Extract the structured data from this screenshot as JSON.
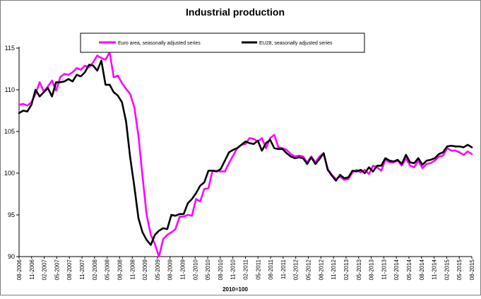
{
  "chart_data": {
    "type": "line",
    "title": "Industrial production",
    "xlabel": "2010=100",
    "ylabel": "",
    "ylim": [
      90,
      115
    ],
    "yticks": [
      90,
      95,
      100,
      105,
      110,
      115
    ],
    "grid": false,
    "legend_position": "top",
    "x_start": "08-2006",
    "x_end": "08-2015",
    "tick_labels": [
      "08-2006",
      "11-2006",
      "02-2007",
      "05-2007",
      "08-2007",
      "11-2007",
      "02-2008",
      "05-2008",
      "08-2008",
      "11-2008",
      "02-2009",
      "05-2009",
      "08-2009",
      "11-2009",
      "02-2010",
      "05-2010",
      "08-2010",
      "11-2010",
      "02-2011",
      "05-2011",
      "08-2011",
      "11-2011",
      "02-2012",
      "05-2012",
      "08-2012",
      "11-2012",
      "02-2013",
      "05-2013",
      "08-2013",
      "11-2013",
      "02-2014",
      "05-2014",
      "08-2014",
      "11-2014",
      "02-2015",
      "05-2015",
      "08-2015"
    ],
    "series": [
      {
        "name": "Euro area, seasonally adjusted series",
        "color": "#ff00ff",
        "values": [
          108.2,
          108.3,
          108.1,
          108.5,
          109.5,
          110.9,
          109.8,
          110.4,
          111.1,
          109.9,
          111.5,
          111.9,
          111.8,
          112.1,
          112.6,
          112.4,
          112.9,
          112.7,
          113.3,
          114.1,
          113.8,
          113.6,
          114.5,
          111.5,
          111.7,
          110.8,
          110.1,
          109.5,
          107.9,
          104.5,
          99.6,
          95.0,
          92.6,
          91.5,
          90.0,
          92.1,
          92.6,
          92.9,
          93.3,
          94.8,
          94.8,
          95.0,
          94.9,
          96.9,
          96.6,
          98.1,
          98.2,
          100.3,
          100.3,
          100.2,
          100.2,
          101.2,
          102.1,
          103.0,
          103.4,
          103.5,
          104.2,
          104.1,
          103.8,
          104.2,
          103.0,
          104.2,
          104.6,
          103.1,
          103.0,
          102.8,
          102.3,
          102.0,
          102.1,
          102.0,
          101.3,
          102.0,
          101.3,
          102.0,
          102.4,
          100.5,
          99.8,
          99.3,
          99.6,
          99.2,
          99.3,
          100.1,
          100.4,
          100.1,
          100.4,
          99.9,
          100.9,
          100.7,
          100.3,
          101.6,
          101.3,
          101.3,
          101.5,
          100.9,
          101.8,
          100.9,
          100.7,
          101.5,
          100.6,
          101.1,
          101.2,
          101.5,
          102.0,
          102.1,
          103.0,
          102.7,
          102.7,
          102.5,
          102.2,
          102.6,
          102.3
        ]
      },
      {
        "name": "EU28, seasonally adjusted series",
        "color": "#000000",
        "values": [
          107.2,
          107.5,
          107.4,
          108.2,
          110.0,
          109.2,
          109.7,
          110.2,
          109.2,
          110.9,
          110.9,
          111.0,
          111.3,
          111.0,
          111.8,
          111.6,
          112.1,
          113.0,
          112.9,
          112.3,
          113.5,
          110.6,
          110.6,
          109.7,
          109.3,
          108.5,
          106.2,
          101.9,
          98.4,
          94.6,
          92.9,
          92.0,
          91.4,
          92.6,
          93.1,
          93.4,
          93.3,
          95.0,
          94.9,
          95.1,
          95.1,
          96.4,
          96.9,
          97.6,
          98.5,
          98.9,
          100.3,
          100.3,
          100.2,
          100.5,
          101.5,
          102.5,
          102.8,
          103.0,
          103.4,
          103.8,
          103.6,
          103.5,
          103.9,
          102.7,
          103.6,
          104.0,
          103.0,
          102.9,
          102.9,
          102.4,
          102.0,
          101.8,
          101.9,
          101.8,
          101.1,
          101.9,
          101.1,
          101.7,
          102.4,
          100.4,
          99.7,
          99.1,
          99.8,
          99.4,
          99.5,
          100.3,
          100.2,
          100.4,
          100.0,
          100.7,
          100.2,
          100.9,
          100.9,
          101.8,
          101.5,
          101.4,
          101.6,
          101.1,
          102.2,
          101.3,
          101.2,
          101.8,
          101.0,
          101.5,
          101.6,
          101.8,
          102.3,
          102.5,
          103.2,
          103.3,
          103.2,
          103.2,
          103.1,
          103.4,
          103.1
        ]
      }
    ]
  }
}
